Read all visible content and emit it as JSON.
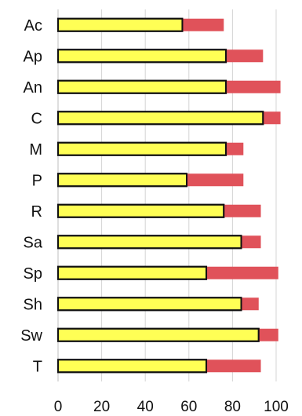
{
  "chart_data": {
    "type": "bar",
    "orientation": "horizontal",
    "stacked": true,
    "title": "",
    "xlabel": "",
    "ylabel": "",
    "xlim": [
      0,
      100
    ],
    "xticks": [
      "0",
      "20",
      "40",
      "60",
      "80",
      "100"
    ],
    "grid": "vertical",
    "legend": "none",
    "categories": [
      "Ac",
      "Ap",
      "An",
      "C",
      "M",
      "P",
      "R",
      "Sa",
      "Sp",
      "Sh",
      "Sw",
      "T"
    ],
    "series": [
      {
        "color": "#ffff55",
        "outline": "#111111",
        "values": [
          57,
          77,
          77,
          94,
          77,
          59,
          76,
          84,
          68,
          84,
          92,
          68
        ]
      },
      {
        "color": "#e0525a",
        "values": [
          19,
          17,
          25,
          8,
          8,
          26,
          17,
          9,
          33,
          8,
          9,
          25
        ]
      }
    ]
  }
}
